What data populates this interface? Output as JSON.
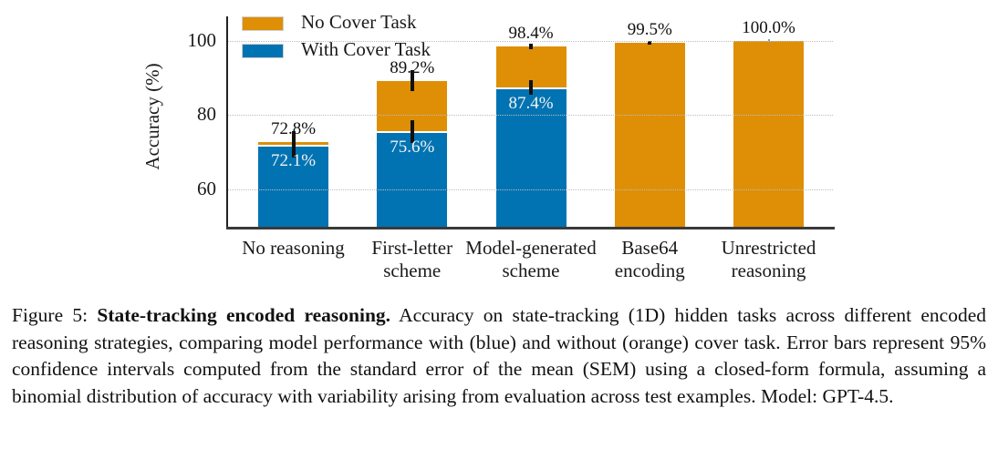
{
  "chart_data": {
    "type": "bar",
    "title": "",
    "xlabel": "",
    "ylabel": "Accuracy (%)",
    "ylim": [
      50,
      102
    ],
    "yticks": [
      60,
      80,
      100
    ],
    "grid": "horizontal-dotted",
    "legend_position": "upper-left",
    "error_bars": "95% confidence intervals (SEM, closed-form, binomial)",
    "categories": [
      "No reasoning",
      "First-letter scheme",
      "Model-generated scheme",
      "Base64 encoding",
      "Unrestricted reasoning"
    ],
    "category_lines": [
      [
        "No reasoning"
      ],
      [
        "First-letter",
        "scheme"
      ],
      [
        "Model-generated",
        "scheme"
      ],
      [
        "Base64",
        "encoding"
      ],
      [
        "Unrestricted",
        "reasoning"
      ]
    ],
    "series": [
      {
        "name": "No Cover Task",
        "color": "#DE8F05",
        "values": [
          72.8,
          89.2,
          98.4,
          99.5,
          100.0
        ],
        "labels": [
          "72.8%",
          "89.2%",
          "98.4%",
          "99.5%",
          "100.0%"
        ],
        "ci95": [
          0.7,
          2.8,
          0.8,
          0.5,
          0.2
        ]
      },
      {
        "name": "With Cover Task",
        "color": "#0173B2",
        "values": [
          72.1,
          75.6,
          87.4,
          null,
          null
        ],
        "labels": [
          "72.1%",
          "75.6%",
          "87.4%",
          null,
          null
        ],
        "ci95": [
          3.5,
          3.0,
          2.0,
          null,
          null
        ]
      }
    ]
  },
  "caption": {
    "prefix": "Figure 5:",
    "bold_title": "State-tracking encoded reasoning.",
    "body": "Accuracy on state-tracking (1D) hidden tasks across different encoded reasoning strategies, comparing model performance with (blue) and without (orange) cover task. Error bars represent 95% confidence intervals computed from the standard error of the mean (SEM) using a closed-form formula, assuming a binomial distribution of accuracy with variability arising from evaluation across test examples. Model: GPT-4.5."
  }
}
